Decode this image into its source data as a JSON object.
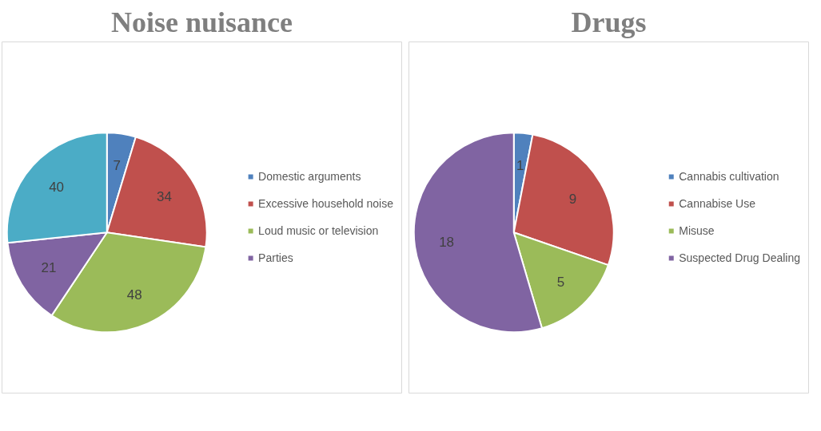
{
  "chart_data": [
    {
      "type": "pie",
      "title": "Noise nuisance",
      "categories": [
        "Domestic arguments",
        "Excessive household noise",
        "Loud music or television",
        "Parties",
        null
      ],
      "values": [
        7,
        34,
        48,
        21,
        40
      ],
      "colors": [
        "#4f81bd",
        "#c0504d",
        "#9bbb59",
        "#8064a2",
        "#4bacc6"
      ],
      "data_labels": true,
      "legend": "right"
    },
    {
      "type": "pie",
      "title": "Drugs",
      "categories": [
        "Cannabis cultivation",
        "Cannabise Use",
        "Misuse",
        "Suspected Drug Dealing"
      ],
      "values": [
        1,
        9,
        5,
        18
      ],
      "colors": [
        "#4f81bd",
        "#c0504d",
        "#9bbb59",
        "#8064a2"
      ],
      "data_labels": true,
      "legend": "right"
    }
  ]
}
